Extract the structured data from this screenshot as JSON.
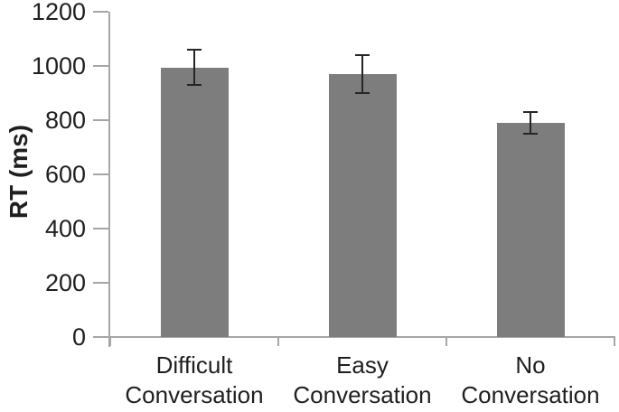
{
  "chart_data": {
    "type": "bar",
    "title": "",
    "ylabel": "RT (ms)",
    "xlabel": "",
    "ylim": [
      0,
      1200
    ],
    "ytick_interval": 200,
    "yticks": [
      0,
      200,
      400,
      600,
      800,
      1000,
      1200
    ],
    "categories": [
      "Difficult Conversation",
      "Easy Conversation",
      "No Conversation"
    ],
    "category_lines": [
      [
        "Difficult",
        "Conversation"
      ],
      [
        "Easy",
        "Conversation"
      ],
      [
        "No",
        "Conversation"
      ]
    ],
    "series": [
      {
        "name": "RT",
        "values": [
          995,
          970,
          790
        ],
        "error_bars": [
          65,
          70,
          40
        ]
      }
    ],
    "grid": false,
    "legend_position": "none",
    "colors": {
      "bar_fill": "#7d7d7d",
      "axis_line": "#a6a6a6",
      "error_bar": "#262626",
      "text": "#1f1f1f",
      "background": "#ffffff"
    }
  }
}
